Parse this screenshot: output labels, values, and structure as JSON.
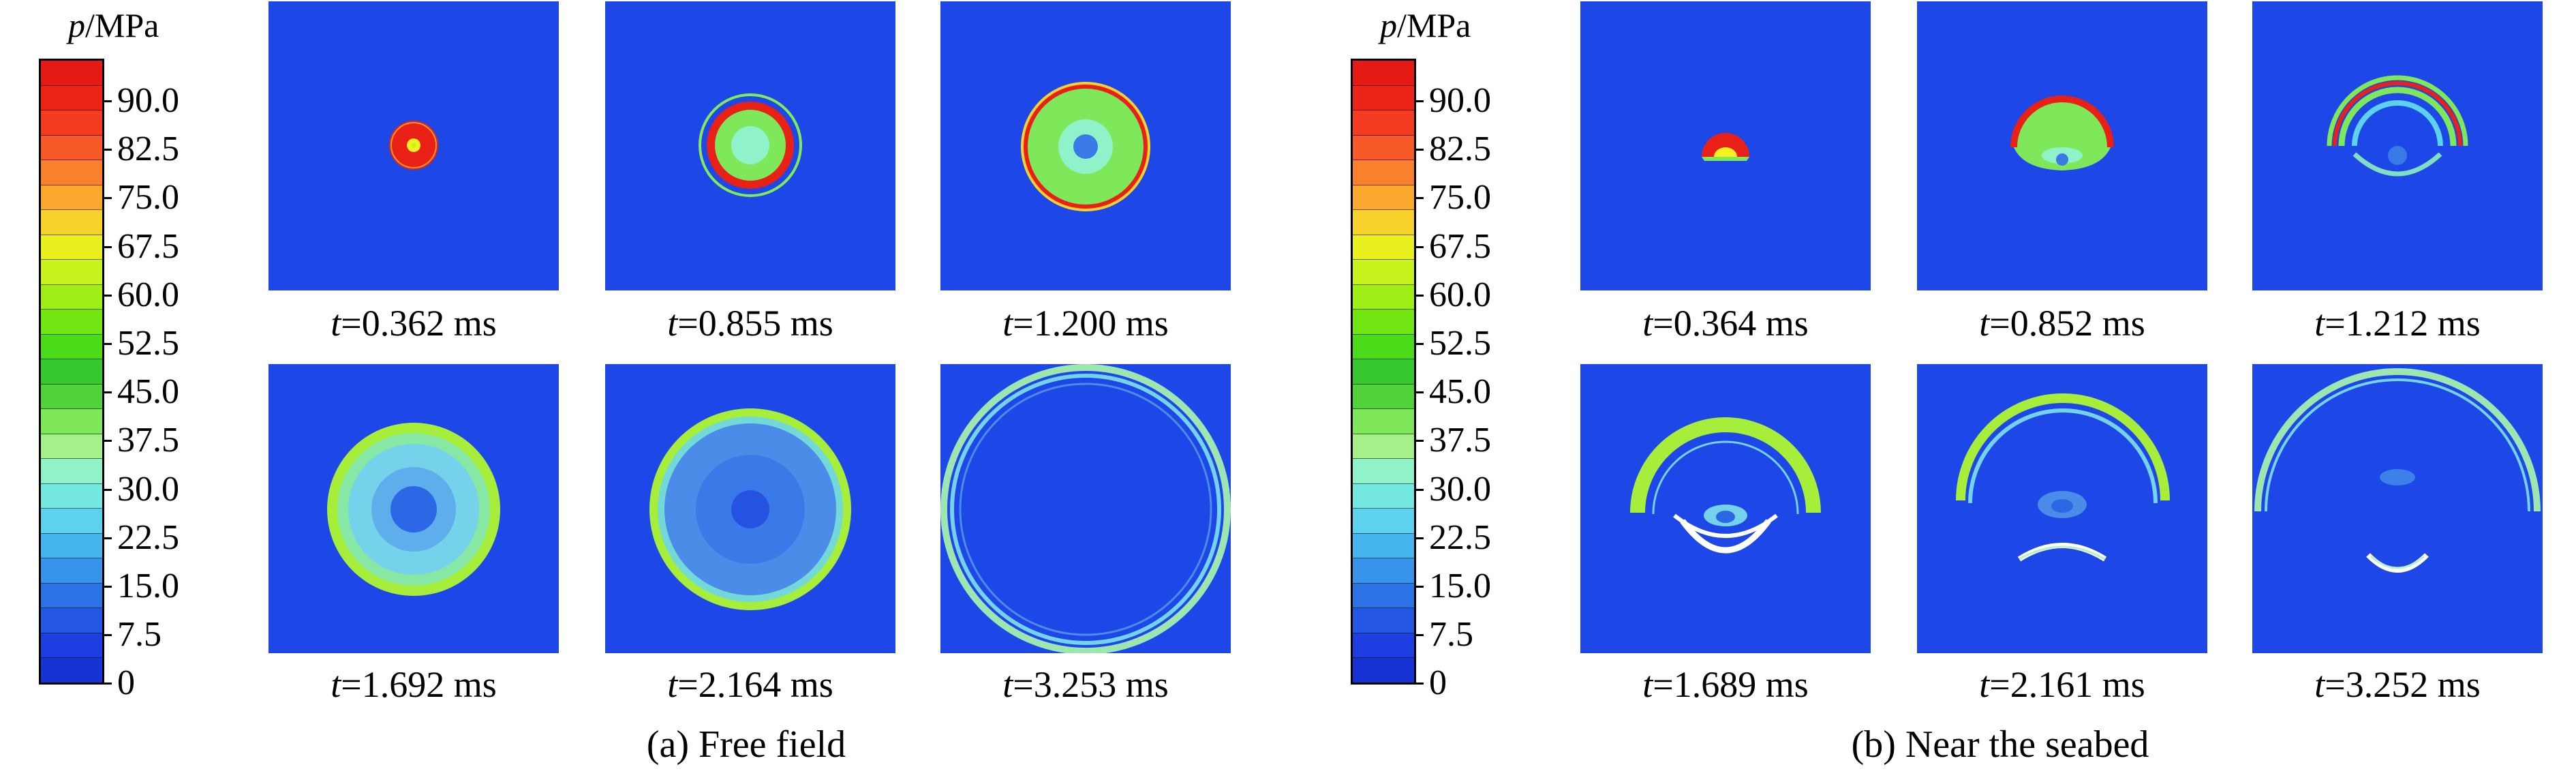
{
  "colorbar": {
    "symbol": "p",
    "unit": "/MPa",
    "labels": [
      "90.0",
      "82.5",
      "75.0",
      "67.5",
      "60.0",
      "52.5",
      "45.0",
      "37.5",
      "30.0",
      "22.5",
      "15.0",
      "7.5",
      "0"
    ],
    "band_colors": [
      "#e61a14",
      "#ee2418",
      "#f43c20",
      "#f75a28",
      "#f9802c",
      "#fba82e",
      "#f8d22c",
      "#eaf01e",
      "#c8f21c",
      "#9fee16",
      "#72e612",
      "#4cdb18",
      "#36c830",
      "#52d23a",
      "#7ee85a",
      "#a6f08a",
      "#8ff2c8",
      "#74e8e0",
      "#5cd2ee",
      "#46b4ee",
      "#3894ea",
      "#2c74e6",
      "#2458e4",
      "#1d3fe2",
      "#1733d6"
    ]
  },
  "panels": {
    "a": [
      {
        "time": "0.362 ms"
      },
      {
        "time": "0.855 ms"
      },
      {
        "time": "1.200 ms"
      },
      {
        "time": "1.692 ms"
      },
      {
        "time": "2.164 ms"
      },
      {
        "time": "3.253 ms"
      }
    ],
    "b": [
      {
        "time": "0.364 ms"
      },
      {
        "time": "0.852 ms"
      },
      {
        "time": "1.212 ms"
      },
      {
        "time": "1.689 ms"
      },
      {
        "time": "2.161 ms"
      },
      {
        "time": "3.252 ms"
      }
    ]
  },
  "time_prefix": "t",
  "captions": {
    "a": "(a) Free field",
    "b": "(b) Near the seabed"
  }
}
